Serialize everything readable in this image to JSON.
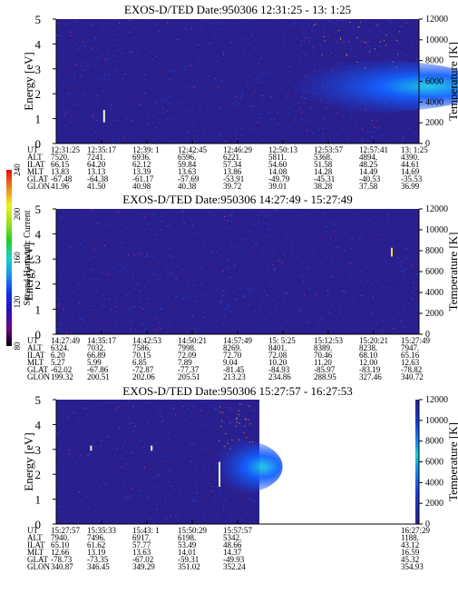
{
  "colors": {
    "background": "#2a1f8f",
    "noise_dark": "#3a1470",
    "noise_blue": "#1e3cc8",
    "noise_dot": "#d03a8a",
    "feature_core": "#19c8e6",
    "feature_mid": "#1460ff",
    "feature_outer": "#1a3fd6"
  },
  "colorbar": {
    "label": "Second Harmonic Current",
    "tick_labels": [
      "80",
      "120",
      "160",
      "200",
      "240"
    ],
    "stops": [
      "#000000",
      "#6a0a8a",
      "#2a10b0",
      "#1030e8",
      "#1890f0",
      "#18d0c8",
      "#20d020",
      "#a0e020",
      "#f0f020",
      "#f08020",
      "#e01010"
    ]
  },
  "chart_data": [
    {
      "type": "heatmap",
      "title": "EXOS-D/TED   Date:950306  12:31:25 - 13: 1:25",
      "ylabel": "Energy [eV]",
      "ylabel_right": "Temperature [K]",
      "ylim": [
        0,
        5
      ],
      "yticks": [
        "0",
        "1",
        "2",
        "3",
        "4",
        "5"
      ],
      "ylim_right": [
        0,
        12000
      ],
      "yticks_right": [
        "0",
        "2000",
        "4000",
        "6000",
        "8000",
        "10000",
        "12000"
      ],
      "data_extent": 1.0,
      "features": [
        {
          "kind": "plasma",
          "time_frac": [
            0.55,
            1.0
          ],
          "energy_center": 2.3,
          "half_width": 0.7
        },
        {
          "kind": "spike",
          "time_frac": 0.132,
          "energy": [
            0.85,
            1.35
          ]
        }
      ],
      "table": {
        "row_labels": [
          "UT",
          "ALT",
          "ILAT",
          "MLT",
          "GLAT",
          "GLON"
        ],
        "columns": [
          [
            "12:31:25",
            "7520.",
            "66.15",
            "13.83",
            "-67.48",
            "41.96"
          ],
          [
            "12:35:17",
            "7241.",
            "64.20",
            "13.13",
            "-64.38",
            "41.50"
          ],
          [
            "12:39: 1",
            "6936.",
            "62.12",
            "13.39",
            "-61.17",
            "40.98"
          ],
          [
            "12:42:45",
            "6596.",
            "59.84",
            "13.63",
            "-57.69",
            "40.38"
          ],
          [
            "12:46:29",
            "6221.",
            "57.34",
            "13.86",
            "-53.91",
            "39.72"
          ],
          [
            "12:50:13",
            "5811.",
            "54.60",
            "14.08",
            "-49.79",
            "39.01"
          ],
          [
            "12:53:57",
            "5368.",
            "51.58",
            "14.28",
            "-45.31",
            "38.28"
          ],
          [
            "12:57:41",
            "4894.",
            "48.25",
            "14.49",
            "-40.53",
            "37.58"
          ],
          [
            "13: 1:25",
            "4390.",
            "44.61",
            "14.69",
            "-35.53",
            "36.99"
          ]
        ]
      }
    },
    {
      "type": "heatmap",
      "title": "EXOS-D/TED   Date:950306  14:27:49 - 15:27:49",
      "ylabel": "Energy [eV]",
      "ylabel_right": "Temperature [K]",
      "ylim": [
        0,
        5
      ],
      "yticks": [
        "0",
        "1",
        "2",
        "3",
        "4",
        "5"
      ],
      "ylim_right": [
        0,
        12000
      ],
      "yticks_right": [
        "0",
        "2000",
        "4000",
        "6000",
        "8000",
        "10000",
        "12000"
      ],
      "data_extent": 1.0,
      "features": [
        {
          "kind": "spike",
          "time_frac": 0.925,
          "energy": [
            3.1,
            3.45
          ]
        }
      ],
      "table": {
        "row_labels": [
          "UT",
          "ALT",
          "ILAT",
          "MLT",
          "GLAT",
          "GLON"
        ],
        "columns": [
          [
            "14:27:49",
            "6324.",
            "6.20",
            "5.27",
            "-62.02",
            "199.32"
          ],
          [
            "14:35:17",
            "7032.",
            "66.89",
            "5.99",
            "-67.86",
            "200.51"
          ],
          [
            "14:42:53",
            "7586.",
            "70.15",
            "6.85",
            "-72.87",
            "202.06"
          ],
          [
            "14:50:21",
            "7998.",
            "72.09",
            "7.89",
            "-77.37",
            "205.51"
          ],
          [
            "14:57:49",
            "8269.",
            "72.70",
            "9.04",
            "-81.45",
            "213.23"
          ],
          [
            "15: 5:25",
            "8401.",
            "72.08",
            "10.20",
            "-84.93",
            "234.86"
          ],
          [
            "15:12:53",
            "8389.",
            "70.46",
            "11.20",
            "-85.97",
            "288.95"
          ],
          [
            "15:20:21",
            "8238.",
            "68.10",
            "12.00",
            "-83.19",
            "327.46"
          ],
          [
            "15:27:49",
            "7947.",
            "65.16",
            "12.63",
            "-78.82",
            "340.72"
          ]
        ]
      }
    },
    {
      "type": "heatmap",
      "title": "EXOS-D/TED   Date:950306  15:27:57 - 16:27:53",
      "ylabel": "Energy [eV]",
      "ylabel_right": "Temperature [K]",
      "ylim": [
        0,
        5
      ],
      "yticks": [
        "0",
        "1",
        "2",
        "3",
        "4",
        "5"
      ],
      "ylim_right": [
        0,
        12000
      ],
      "yticks_right": [
        "0",
        "2000",
        "4000",
        "6000",
        "8000",
        "10000",
        "12000"
      ],
      "data_extent": 0.56,
      "features": [
        {
          "kind": "plasma",
          "time_frac": [
            0.4,
            0.56
          ],
          "energy_center": 2.3,
          "half_width": 0.7
        },
        {
          "kind": "spike",
          "time_frac": 0.096,
          "energy": [
            2.95,
            3.15
          ]
        },
        {
          "kind": "spike",
          "time_frac": 0.263,
          "energy": [
            2.95,
            3.15
          ]
        },
        {
          "kind": "spike",
          "time_frac": 0.45,
          "energy": [
            1.5,
            2.5
          ]
        }
      ],
      "table": {
        "row_labels": [
          "UT",
          "ALT",
          "ILAT",
          "MLT",
          "GLAT",
          "GLON"
        ],
        "columns": [
          [
            "15:27:57",
            "7940.",
            "65.10",
            "12.66",
            "-78.73",
            "340.87"
          ],
          [
            "15:35:33",
            "7496.",
            "61.62",
            "13.19",
            "-73.35",
            "346.45"
          ],
          [
            "15:43: 1",
            "6917.",
            "57.77",
            "13.63",
            "-67.02",
            "349.29"
          ],
          [
            "15:50:29",
            "6198.",
            "53.49",
            "14.01",
            "-59.31",
            "351.02"
          ],
          [
            "15:57:57",
            "5342.",
            "48.66",
            "14.37",
            "-49.93",
            "352.24"
          ],
          [
            "16:27:29",
            "1188.",
            "43.12",
            "16.59",
            "45.32",
            "354.93"
          ]
        ]
      }
    }
  ]
}
